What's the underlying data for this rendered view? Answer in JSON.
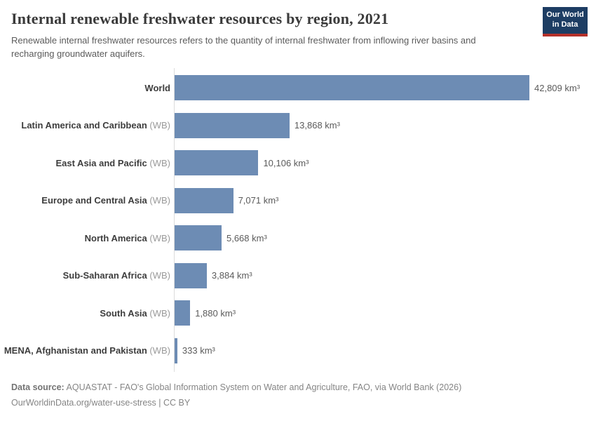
{
  "header": {
    "title": "Internal renewable freshwater resources by region, 2021",
    "subtitle": "Renewable internal freshwater resources refers to the quantity of internal freshwater from inflowing river basins and recharging groundwater aquifers.",
    "logo": {
      "line1": "Our World",
      "line2": "in Data",
      "bg_color": "#1d3d63",
      "accent_color": "#b5312a"
    }
  },
  "chart_data": {
    "type": "bar",
    "orientation": "horizontal",
    "title": "Internal renewable freshwater resources by region, 2021",
    "xlabel": "",
    "ylabel": "",
    "unit": "km³",
    "categories": [
      "World",
      "Latin America and Caribbean",
      "East Asia and Pacific",
      "Europe and Central Asia",
      "North America",
      "Sub-Saharan Africa",
      "South Asia",
      "MENA, Afghanistan and Pakistan"
    ],
    "suffixes": [
      "",
      "(WB)",
      "(WB)",
      "(WB)",
      "(WB)",
      "(WB)",
      "(WB)",
      "(WB)"
    ],
    "values": [
      42809,
      13868,
      10106,
      7071,
      5668,
      3884,
      1880,
      333
    ],
    "value_labels": [
      "42,809 km³",
      "13,868 km³",
      "10,106 km³",
      "7,071 km³",
      "5,668 km³",
      "3,884 km³",
      "1,880 km³",
      "333 km³"
    ],
    "xlim": [
      0,
      42809
    ],
    "bar_color": "#6d8cb4",
    "axis_color": "#dcdcdc",
    "grid": false,
    "legend": "none"
  },
  "footer": {
    "source_label": "Data source:",
    "source_text": "AQUASTAT - FAO's Global Information System on Water and Agriculture, FAO, via World Bank (2026)",
    "note": "OurWorldinData.org/water-use-stress | CC BY"
  }
}
